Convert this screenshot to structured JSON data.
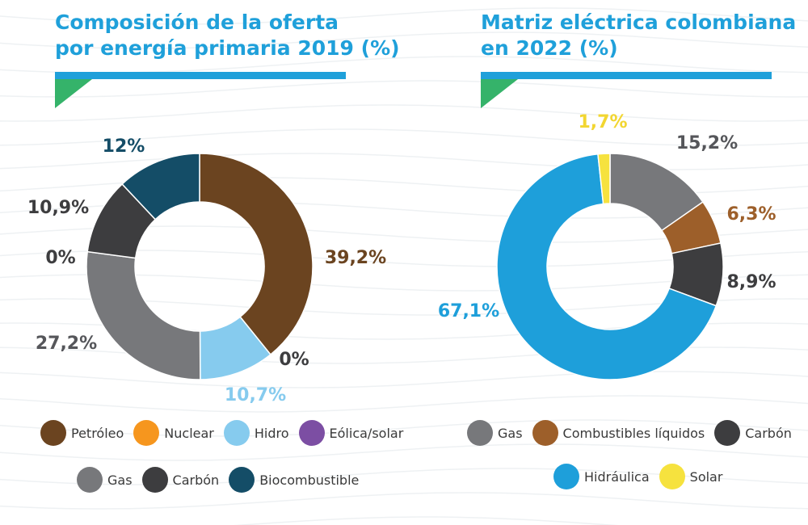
{
  "colors": {
    "title": "#1fa0da",
    "underline": "#1fa0da",
    "accent_green": "#35b36a",
    "petroleo": "#6b4420",
    "nuclear": "#f6961e",
    "hidro": "#86cbee",
    "eolica_solar": "#7c4ea3",
    "gas": "#77787b",
    "carbon": "#3d3d3f",
    "biocombustible": "#144d67",
    "combustibles_liquidos": "#9d5f2a",
    "hidraulica": "#1e9fda",
    "solar": "#f6e23e"
  },
  "chart_data": [
    {
      "type": "pie",
      "variant": "donut",
      "title": "Composición de la oferta\npor energía primaria 2019 (%)",
      "slices": [
        {
          "name": "Petróleo",
          "value": 39.2,
          "label": "39,2%",
          "color": "#6b4420",
          "label_color": "#6b4420"
        },
        {
          "name": "Nuclear",
          "value": 0,
          "label": "0%",
          "color": "#f6961e",
          "label_color": "#3d3d3f"
        },
        {
          "name": "Hidro",
          "value": 10.7,
          "label": "10,7%",
          "color": "#86cbee",
          "label_color": "#86cbee"
        },
        {
          "name": "Eólica/solar",
          "value": 0,
          "label": "0%",
          "color": "#7c4ea3",
          "label_color": "#3d3d3f"
        },
        {
          "name": "Gas",
          "value": 27.2,
          "label": "27,2%",
          "color": "#77787b",
          "label_color": "#55565a"
        },
        {
          "name": "Carbón",
          "value": 10.9,
          "label": "10,9%",
          "color": "#3d3d3f",
          "label_color": "#3d3d3f"
        },
        {
          "name": "Biocombustible",
          "value": 12,
          "label": "12%",
          "color": "#144d67",
          "label_color": "#144d67"
        }
      ],
      "legend_rows": [
        [
          "Petróleo",
          "Nuclear",
          "Hidro",
          "Eólica/solar"
        ],
        [
          "Gas",
          "Carbón",
          "Biocombustible"
        ]
      ],
      "legend": "bottom"
    },
    {
      "type": "pie",
      "variant": "donut",
      "title": "Matriz eléctrica colombiana\nen 2022 (%)",
      "slices": [
        {
          "name": "Gas",
          "value": 15.2,
          "label": "15,2%",
          "color": "#77787b",
          "label_color": "#55565a"
        },
        {
          "name": "Combustibles líquidos",
          "value": 6.3,
          "label": "6,3%",
          "color": "#9d5f2a",
          "label_color": "#9d5f2a"
        },
        {
          "name": "Carbón",
          "value": 8.9,
          "label": "8,9%",
          "color": "#3d3d3f",
          "label_color": "#3d3d3f"
        },
        {
          "name": "Hidráulica",
          "value": 67.1,
          "label": "67,1%",
          "color": "#1e9fda",
          "label_color": "#1e9fda"
        },
        {
          "name": "Solar",
          "value": 1.7,
          "label": "1,7%",
          "color": "#f6e23e",
          "label_color": "#f2d631"
        }
      ],
      "legend_rows": [
        [
          "Gas",
          "Combustibles líquidos",
          "Carbón"
        ],
        [
          "Hidráulica",
          "Solar"
        ]
      ],
      "legend": "bottom"
    }
  ]
}
